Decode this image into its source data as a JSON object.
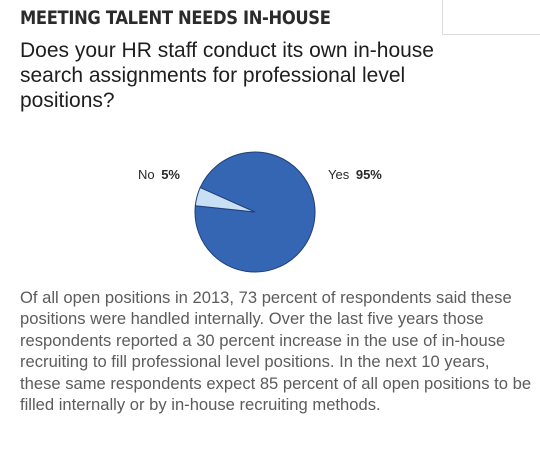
{
  "header": {
    "title": "MEETING TALENT NEEDS IN-HOUSE"
  },
  "question": "Does your HR staff conduct its own in-house search assignments for professional level positions?",
  "chart_data": {
    "type": "pie",
    "title": "",
    "slices": [
      {
        "label": "Yes",
        "value": 95,
        "display": "95%",
        "color": "#3466b4"
      },
      {
        "label": "No",
        "value": 5,
        "display": "5%",
        "color": "#c9dff3"
      }
    ],
    "legend": "none"
  },
  "paragraph": "Of all open positions in 2013, 73 percent of respondents said these positions were handled internally. Over the last five years those respondents reported a 30 percent increase in the use of in-house recruiting to fill professional level positions. In the next 10 years, these same respondents expect 85 percent of all open positions to be filled internally or by in-house recruiting methods."
}
